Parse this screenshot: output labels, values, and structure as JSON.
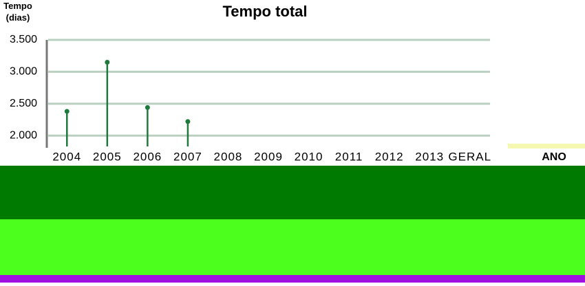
{
  "chart_data": {
    "type": "lollipop",
    "title": "Tempo total",
    "y_label": "Tempo (dias)",
    "x_label": "ANO",
    "categories": [
      "2004",
      "2005",
      "2006",
      "2007",
      "2008",
      "2009",
      "2010",
      "2011",
      "2012",
      "2013",
      "GERAL"
    ],
    "values": [
      2380,
      3150,
      2440,
      2220,
      null,
      null,
      null,
      null,
      null,
      null,
      null
    ],
    "color": "#1e7a3c",
    "grid": true,
    "ylim": [
      1830,
      3500
    ],
    "yticks": [
      {
        "value": 2000,
        "label": "2.000"
      },
      {
        "value": 2500,
        "label": "2.500"
      },
      {
        "value": 3000,
        "label": "3.000"
      },
      {
        "value": 3500,
        "label": "3.500"
      }
    ]
  }
}
